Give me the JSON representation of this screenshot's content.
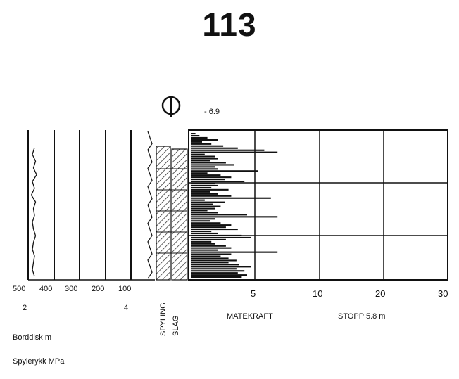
{
  "page_title": "113",
  "chart_data": {
    "type": "line",
    "marker_label": "- 6.9",
    "left_panel": {
      "ticks_top": [
        "500",
        "400",
        "300",
        "200",
        "100"
      ],
      "ticks_bottom": [
        "2",
        "",
        "",
        "",
        "4"
      ],
      "label_1": "Borddisk m",
      "label_2": "Spylerykk MPa",
      "line": [
        0.06,
        0.04,
        0.07,
        0.05,
        0.08,
        0.04,
        0.06,
        0.03,
        0.07,
        0.05,
        0.06,
        0.04,
        0.05,
        0.07,
        0.05,
        0.04,
        0.06,
        0.05,
        0.04,
        0.06
      ]
    },
    "columns": [
      "SPYLING",
      "SLAG"
    ],
    "right_panel": {
      "xticks": [
        "5",
        "10",
        "20",
        "30"
      ],
      "xlabel": "MATEKRAFT",
      "stop_label": "STOPP 5.8 m",
      "feed_force": [
        0.3,
        0.6,
        1.2,
        2.0,
        0.8,
        1.5,
        2.4,
        3.5,
        5.5,
        6.5,
        1.0,
        1.8,
        2.0,
        1.4,
        2.6,
        3.2,
        1.8,
        2.0,
        5.0,
        1.2,
        2.2,
        3.0,
        2.5,
        4.0,
        1.8,
        2.0,
        1.5,
        2.8,
        1.4,
        2.0,
        3.0,
        6.0,
        1.0,
        2.5,
        1.6,
        2.2,
        1.8,
        1.2,
        2.0,
        4.2,
        6.5,
        1.8,
        1.4,
        2.2,
        3.0,
        2.6,
        3.5,
        1.5,
        2.0,
        3.8,
        4.5,
        2.6,
        1.5,
        1.8,
        2.6,
        3.0,
        2.0,
        6.5,
        3.0,
        2.2,
        2.8,
        3.4,
        2.8,
        3.6,
        4.5,
        3.4,
        4.0,
        3.5,
        4.2,
        3.8
      ]
    }
  }
}
